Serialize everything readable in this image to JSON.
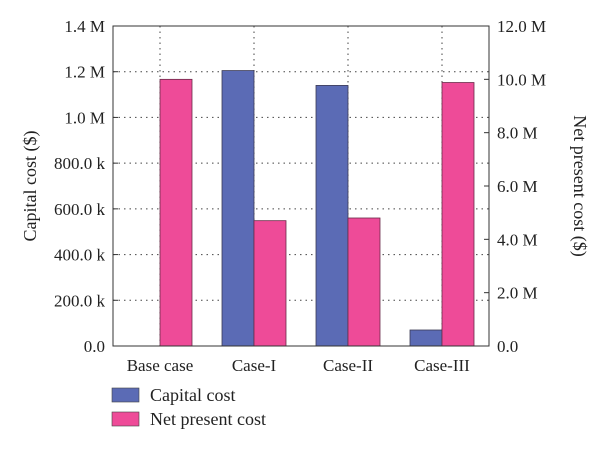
{
  "chart_data": {
    "type": "bar",
    "categories": [
      "Base case",
      "Case-I",
      "Case-II",
      "Case-III"
    ],
    "series": [
      {
        "name": "Capital cost",
        "axis": "left",
        "values": [
          0,
          1205000,
          1140000,
          70000
        ],
        "color": "#5b6bb5"
      },
      {
        "name": "Net present cost",
        "axis": "right",
        "values": [
          10000000,
          4700000,
          4800000,
          9880000
        ],
        "color": "#ee4b98"
      }
    ],
    "ylabel": "Capital cost ($)",
    "y2label": "Net present cost ($)",
    "ylim": [
      0,
      1400000
    ],
    "y2lim": [
      0,
      12000000
    ],
    "yticks": [
      {
        "value": 0,
        "label": "0.0"
      },
      {
        "value": 200000,
        "label": "200.0 k"
      },
      {
        "value": 400000,
        "label": "400.0 k"
      },
      {
        "value": 600000,
        "label": "600.0 k"
      },
      {
        "value": 800000,
        "label": "800.0 k"
      },
      {
        "value": 1000000,
        "label": "1.0 M"
      },
      {
        "value": 1200000,
        "label": "1.2 M"
      },
      {
        "value": 1400000,
        "label": "1.4 M"
      }
    ],
    "y2ticks": [
      {
        "value": 0,
        "label": "0.0"
      },
      {
        "value": 2000000,
        "label": "2.0 M"
      },
      {
        "value": 4000000,
        "label": "4.0 M"
      },
      {
        "value": 6000000,
        "label": "6.0 M"
      },
      {
        "value": 8000000,
        "label": "8.0 M"
      },
      {
        "value": 10000000,
        "label": "10.0 M"
      },
      {
        "value": 12000000,
        "label": "12.0 M"
      }
    ],
    "grid": true,
    "legend_position": "bottom-left"
  }
}
